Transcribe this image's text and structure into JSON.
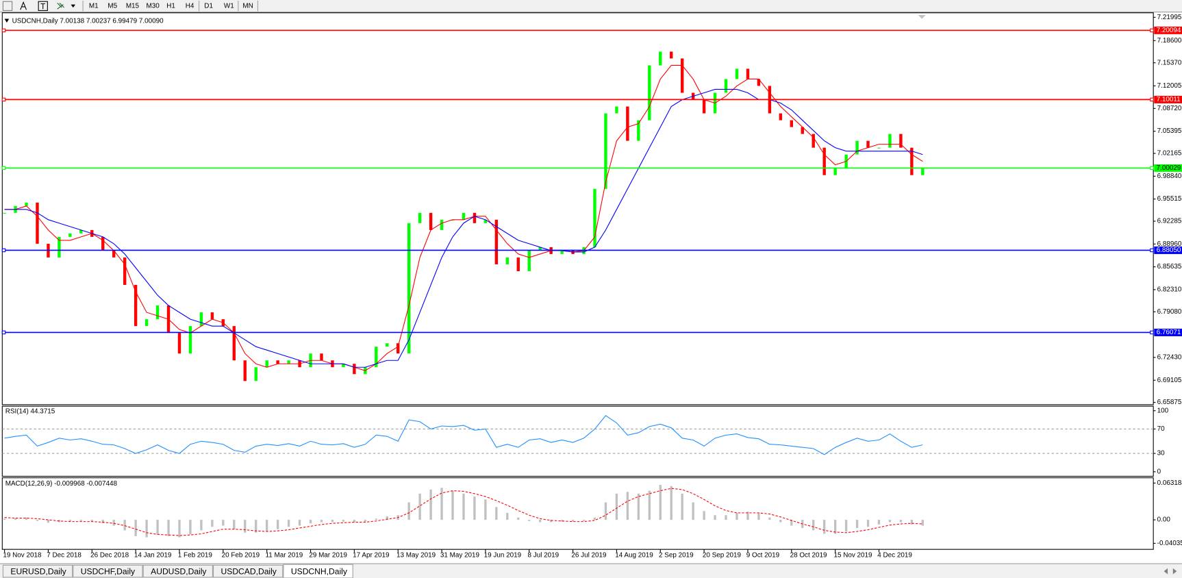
{
  "toolbar": {
    "timeframes": [
      "M1",
      "M5",
      "M15",
      "M30",
      "H1",
      "H4",
      "D1",
      "W1",
      "MN"
    ]
  },
  "tabs": [
    "EURUSD,Daily",
    "USDCHF,Daily",
    "AUDUSD,Daily",
    "USDCAD,Daily",
    "USDCNH,Daily"
  ],
  "active_tab": 4,
  "chart_data": [
    {
      "type": "candlestick",
      "title": "USDCNH,Daily  7.00138 7.00237 6.99479 7.00090",
      "categories": [
        "19 Nov 2018",
        null,
        null,
        null,
        "7 Dec 2018",
        null,
        null,
        null,
        "26 Dec 2018",
        null,
        null,
        null,
        "14 Jan 2019",
        null,
        null,
        null,
        "1 Feb 2019",
        null,
        null,
        null,
        "20 Feb 2019",
        null,
        null,
        null,
        "11 Mar 2019",
        null,
        null,
        null,
        "29 Mar 2019",
        null,
        null,
        null,
        "17 Apr 2019",
        null,
        null,
        null,
        "13 May 2019",
        null,
        null,
        null,
        "31 May 2019",
        null,
        null,
        null,
        "19 Jun 2019",
        null,
        null,
        null,
        "8 Jul 2019",
        null,
        null,
        null,
        "26 Jul 2019",
        null,
        null,
        null,
        "14 Aug 2019",
        null,
        null,
        null,
        "2 Sep 2019",
        null,
        null,
        null,
        "20 Sep 2019",
        null,
        null,
        null,
        "9 Oct 2019",
        null,
        null,
        null,
        "28 Oct 2019",
        null,
        null,
        null,
        "15 Nov 2019",
        null,
        null,
        null,
        "4 Dec 2019",
        null,
        null,
        null,
        null
      ],
      "values": [
        6.935,
        6.945,
        6.95,
        6.89,
        6.87,
        6.9,
        6.905,
        6.91,
        6.9,
        6.88,
        6.87,
        6.83,
        6.77,
        6.78,
        6.8,
        6.76,
        6.73,
        6.77,
        6.79,
        6.78,
        6.77,
        6.72,
        6.69,
        6.71,
        6.72,
        6.715,
        6.72,
        6.71,
        6.73,
        6.72,
        6.71,
        6.715,
        6.7,
        6.71,
        6.74,
        6.745,
        6.73,
        6.92,
        6.935,
        6.91,
        6.925,
        6.925,
        6.935,
        6.92,
        6.925,
        6.86,
        6.87,
        6.85,
        6.88,
        6.885,
        6.875,
        6.88,
        6.875,
        6.885,
        6.97,
        7.08,
        7.09,
        7.04,
        7.07,
        7.15,
        7.17,
        7.16,
        7.11,
        7.1,
        7.08,
        7.11,
        7.13,
        7.145,
        7.13,
        7.12,
        7.08,
        7.07,
        7.06,
        7.05,
        7.03,
        6.99,
        7.0,
        7.02,
        7.04,
        7.03,
        7.03,
        7.05,
        7.03,
        6.99,
        7.0
      ],
      "up_color": "#00ff00",
      "down_color": "#ff0000",
      "lines": [
        {
          "color": "#ff0000",
          "values": [
            6.94,
            6.94,
            6.945,
            6.93,
            6.91,
            6.895,
            6.895,
            6.9,
            6.905,
            6.895,
            6.88,
            6.86,
            6.82,
            6.79,
            6.785,
            6.78,
            6.765,
            6.76,
            6.77,
            6.78,
            6.775,
            6.76,
            6.73,
            6.715,
            6.71,
            6.715,
            6.715,
            6.715,
            6.72,
            6.72,
            6.715,
            6.715,
            6.71,
            6.705,
            6.715,
            6.73,
            6.74,
            6.8,
            6.87,
            6.91,
            6.92,
            6.925,
            6.925,
            6.93,
            6.93,
            6.91,
            6.89,
            6.875,
            6.87,
            6.875,
            6.88,
            6.88,
            6.878,
            6.88,
            6.9,
            6.98,
            7.04,
            7.06,
            7.065,
            7.09,
            7.13,
            7.15,
            7.15,
            7.13,
            7.1,
            7.095,
            7.105,
            7.12,
            7.13,
            7.13,
            7.11,
            7.09,
            7.075,
            7.06,
            7.045,
            7.02,
            7.005,
            7.01,
            7.025,
            7.03,
            7.035,
            7.035,
            7.035,
            7.02,
            7.01
          ]
        },
        {
          "color": "#0000ff",
          "values": [
            6.94,
            6.94,
            6.94,
            6.935,
            6.925,
            6.92,
            6.915,
            6.91,
            6.905,
            6.9,
            6.89,
            6.875,
            6.855,
            6.835,
            6.815,
            6.8,
            6.79,
            6.78,
            6.775,
            6.77,
            6.77,
            6.76,
            6.75,
            6.74,
            6.735,
            6.73,
            6.725,
            6.72,
            6.715,
            6.715,
            6.715,
            6.715,
            6.71,
            6.71,
            6.715,
            6.72,
            6.72,
            6.75,
            6.79,
            6.83,
            6.87,
            6.9,
            6.92,
            6.93,
            6.925,
            6.915,
            6.905,
            6.895,
            6.89,
            6.885,
            6.88,
            6.88,
            6.878,
            6.878,
            6.885,
            6.91,
            6.94,
            6.97,
            7.0,
            7.03,
            7.06,
            7.09,
            7.1,
            7.105,
            7.11,
            7.115,
            7.115,
            7.115,
            7.11,
            7.1,
            7.1,
            7.095,
            7.085,
            7.07,
            7.055,
            7.04,
            7.03,
            7.025,
            7.025,
            7.025,
            7.025,
            7.025,
            7.025,
            7.025,
            7.02
          ]
        }
      ],
      "levels": [
        {
          "value": 7.20094,
          "label": "7.20094",
          "color": "#ff0000"
        },
        {
          "value": 7.10011,
          "label": "7.10011",
          "color": "#ff0000"
        },
        {
          "value": 7.00029,
          "label": "7.00029",
          "color": "#00ff00"
        },
        {
          "value": 6.8805,
          "label": "6.88050",
          "color": "#0000ff"
        },
        {
          "value": 6.76071,
          "label": "6.76071",
          "color": "#0000ff"
        }
      ],
      "ylim": [
        6.65875,
        7.21995
      ],
      "yticks": [
        6.65875,
        6.69105,
        {
          "value": 6.7243,
          "label": "6.72430"
        },
        {
          "value": 6.7908,
          "label": "6.79080"
        },
        {
          "value": 6.8231,
          "label": "6.82310"
        },
        6.85635,
        {
          "value": 6.8896,
          "label": "6.88960"
        },
        6.92285,
        6.95515,
        {
          "value": 6.9884,
          "label": "6.98840"
        },
        7.02165,
        7.05395,
        {
          "value": 7.0872,
          "label": "7.08720"
        },
        7.12005,
        {
          "value": 7.1537,
          "label": "7.15370"
        },
        {
          "value": 7.186,
          "label": "7.18600"
        },
        7.21995
      ]
    },
    {
      "type": "line",
      "title": "RSI(14) 44.3715",
      "color": "#1e90ff",
      "values": [
        55,
        58,
        60,
        42,
        48,
        55,
        52,
        54,
        50,
        45,
        44,
        38,
        30,
        36,
        44,
        35,
        30,
        45,
        50,
        48,
        45,
        35,
        32,
        42,
        45,
        43,
        46,
        42,
        50,
        45,
        44,
        46,
        40,
        45,
        60,
        58,
        50,
        85,
        82,
        70,
        75,
        74,
        76,
        68,
        70,
        40,
        45,
        40,
        52,
        54,
        48,
        52,
        48,
        55,
        70,
        92,
        80,
        60,
        64,
        74,
        78,
        72,
        55,
        52,
        42,
        55,
        60,
        62,
        56,
        54,
        45,
        44,
        42,
        40,
        38,
        28,
        40,
        48,
        55,
        50,
        52,
        62,
        50,
        40,
        44
      ],
      "levels": [
        70,
        30
      ],
      "ylim": [
        0,
        100
      ],
      "yticks": [
        0,
        30,
        70,
        100
      ]
    },
    {
      "type": "macd",
      "title": "MACD(12,26,9) -0.009968 -0.007448",
      "color": "#c0c0c0",
      "values": [
        0.002,
        0.003,
        0.004,
        -0.002,
        -0.005,
        -0.004,
        -0.003,
        -0.002,
        -0.003,
        -0.006,
        -0.01,
        -0.018,
        -0.028,
        -0.03,
        -0.025,
        -0.028,
        -0.03,
        -0.025,
        -0.018,
        -0.012,
        -0.01,
        -0.016,
        -0.022,
        -0.022,
        -0.02,
        -0.016,
        -0.012,
        -0.01,
        -0.006,
        -0.004,
        -0.004,
        -0.003,
        -0.004,
        -0.003,
        0.002,
        0.006,
        0.008,
        0.03,
        0.045,
        0.052,
        0.055,
        0.05,
        0.045,
        0.04,
        0.035,
        0.022,
        0.012,
        0.004,
        -0.002,
        -0.004,
        -0.004,
        -0.003,
        -0.003,
        -0.002,
        0.004,
        0.03,
        0.045,
        0.048,
        0.045,
        0.05,
        0.06,
        0.058,
        0.045,
        0.03,
        0.015,
        0.008,
        0.008,
        0.012,
        0.014,
        0.012,
        0.004,
        -0.004,
        -0.01,
        -0.014,
        -0.018,
        -0.024,
        -0.024,
        -0.02,
        -0.014,
        -0.012,
        -0.008,
        -0.004,
        -0.004,
        -0.008,
        -0.01
      ],
      "signal": {
        "color": "#ff0000",
        "values": [
          0.004,
          0.003,
          0.003,
          0.002,
          0.0,
          -0.002,
          -0.003,
          -0.003,
          -0.003,
          -0.004,
          -0.006,
          -0.01,
          -0.016,
          -0.022,
          -0.025,
          -0.026,
          -0.027,
          -0.026,
          -0.024,
          -0.02,
          -0.016,
          -0.016,
          -0.017,
          -0.019,
          -0.02,
          -0.019,
          -0.017,
          -0.014,
          -0.011,
          -0.008,
          -0.006,
          -0.005,
          -0.004,
          -0.004,
          -0.002,
          0.001,
          0.004,
          0.012,
          0.024,
          0.036,
          0.046,
          0.05,
          0.049,
          0.045,
          0.04,
          0.033,
          0.025,
          0.016,
          0.008,
          0.002,
          -0.001,
          -0.002,
          -0.003,
          -0.003,
          -0.001,
          0.008,
          0.02,
          0.032,
          0.04,
          0.045,
          0.05,
          0.054,
          0.052,
          0.045,
          0.035,
          0.024,
          0.016,
          0.012,
          0.012,
          0.012,
          0.01,
          0.005,
          -0.001,
          -0.007,
          -0.012,
          -0.018,
          -0.021,
          -0.022,
          -0.02,
          -0.017,
          -0.013,
          -0.009,
          -0.007,
          -0.006,
          -0.007
        ]
      },
      "ylim": [
        -0.040355,
        0.063184
      ],
      "yticks": [
        -0.040355,
        {
          "value": 0,
          "label": "0.00"
        },
        0.063184
      ]
    }
  ]
}
